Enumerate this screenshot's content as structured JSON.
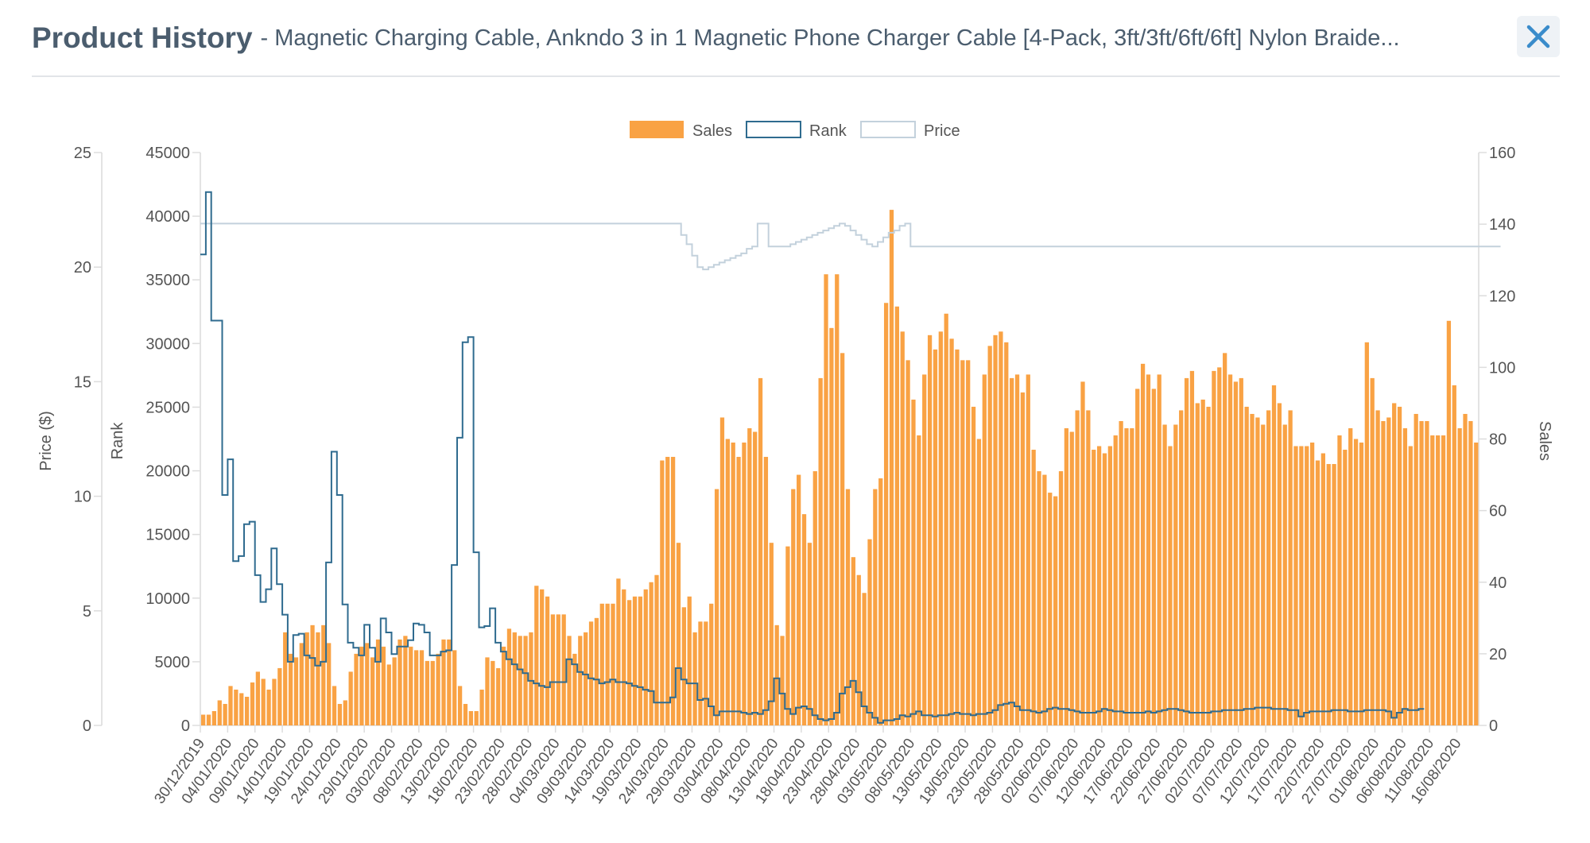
{
  "header": {
    "title": "Product History",
    "separator": "-",
    "subtitle": "Magnetic Charging Cable, Ankndo 3 in 1 Magnetic Phone Charger Cable [4-Pack, 3ft/3ft/6ft/6ft] Nylon Braide...",
    "close_icon": "close-icon"
  },
  "colors": {
    "title": "#4b5d6e",
    "sales": "#f9a244",
    "rank": "#2f6b8f",
    "price": "#c3d1dc",
    "close": "#3a8ccb",
    "axis": "#dddddd",
    "text": "#555555"
  },
  "chart_data": {
    "type": "bar",
    "title": "",
    "legend": [
      "Sales",
      "Rank",
      "Price"
    ],
    "legend_position": "top-center",
    "start_date": "30/12/2019",
    "tick_labels": [
      "30/12/2019",
      "04/01/2020",
      "09/01/2020",
      "14/01/2020",
      "19/01/2020",
      "24/01/2020",
      "29/01/2020",
      "03/02/2020",
      "08/02/2020",
      "13/02/2020",
      "18/02/2020",
      "23/02/2020",
      "28/02/2020",
      "04/03/2020",
      "09/03/2020",
      "14/03/2020",
      "19/03/2020",
      "24/03/2020",
      "29/03/2020",
      "03/04/2020",
      "08/04/2020",
      "13/04/2020",
      "18/04/2020",
      "23/04/2020",
      "28/04/2020",
      "03/05/2020",
      "08/05/2020",
      "13/05/2020",
      "18/05/2020",
      "23/05/2020",
      "28/05/2020",
      "02/06/2020",
      "07/06/2020",
      "12/06/2020",
      "17/06/2020",
      "22/06/2020",
      "27/06/2020",
      "02/07/2020",
      "07/07/2020",
      "12/07/2020",
      "17/07/2020",
      "22/07/2020",
      "27/07/2020",
      "01/08/2020",
      "06/08/2020",
      "11/08/2020",
      "16/08/2020"
    ],
    "tick_interval_days": 5,
    "axes": {
      "price": {
        "label": "Price ($)",
        "range": [
          0,
          25
        ],
        "ticks": [
          0,
          5,
          10,
          15,
          20,
          25
        ]
      },
      "rank": {
        "label": "Rank",
        "range": [
          0,
          45000
        ],
        "ticks": [
          0,
          5000,
          10000,
          15000,
          20000,
          25000,
          30000,
          35000,
          40000,
          45000
        ]
      },
      "sales": {
        "label": "Sales",
        "range": [
          0,
          160
        ],
        "ticks": [
          0,
          20,
          40,
          60,
          80,
          100,
          120,
          140,
          160
        ]
      }
    },
    "series": [
      {
        "name": "Sales",
        "type": "bar",
        "axis": "sales",
        "values": [
          3,
          3,
          4,
          7,
          6,
          11,
          10,
          9,
          8,
          12,
          15,
          13,
          10,
          13,
          16,
          26,
          20,
          19,
          23,
          26,
          28,
          26,
          28,
          23,
          11,
          6,
          7,
          15,
          20,
          22,
          23,
          19,
          24,
          22,
          17,
          19,
          24,
          25,
          22,
          21,
          21,
          18,
          18,
          20,
          24,
          24,
          21,
          11,
          6,
          4,
          4,
          10,
          19,
          18,
          16,
          22,
          27,
          26,
          25,
          25,
          26,
          39,
          38,
          36,
          31,
          31,
          31,
          25,
          20,
          25,
          26,
          29,
          30,
          34,
          34,
          34,
          41,
          38,
          35,
          36,
          36,
          38,
          40,
          42,
          74,
          75,
          75,
          51,
          33,
          36,
          26,
          29,
          29,
          34,
          66,
          86,
          80,
          79,
          75,
          79,
          83,
          82,
          97,
          75,
          51,
          28,
          25,
          50,
          66,
          70,
          59,
          51,
          71,
          97,
          126,
          111,
          126,
          104,
          66,
          47,
          42,
          37,
          52,
          66,
          69,
          118,
          144,
          117,
          110,
          102,
          91,
          81,
          98,
          109,
          105,
          110,
          115,
          108,
          105,
          102,
          102,
          89,
          80,
          98,
          106,
          109,
          110,
          107,
          97,
          98,
          93,
          98,
          77,
          71,
          70,
          65,
          64,
          71,
          83,
          82,
          88,
          96,
          88,
          77,
          78,
          76,
          78,
          81,
          85,
          83,
          83,
          94,
          101,
          98,
          94,
          98,
          84,
          78,
          84,
          88,
          97,
          99,
          90,
          91,
          89,
          99,
          100,
          104,
          98,
          96,
          97,
          89,
          87,
          86,
          84,
          88,
          95,
          90,
          84,
          88,
          78,
          78,
          78,
          79,
          74,
          76,
          73,
          73,
          81,
          77,
          83,
          80,
          79,
          107,
          97,
          88,
          85,
          86,
          90,
          89,
          83,
          78,
          87,
          85,
          85,
          81,
          81,
          81,
          113,
          95,
          83,
          87,
          85,
          79
        ]
      },
      {
        "name": "Rank",
        "type": "step-line",
        "axis": "rank",
        "values": [
          37000,
          41900,
          31800,
          31800,
          18100,
          20900,
          12900,
          13300,
          15800,
          16000,
          11800,
          9700,
          10700,
          13900,
          11100,
          8700,
          5000,
          7100,
          7200,
          5500,
          5300,
          4700,
          5000,
          12800,
          21500,
          18100,
          9500,
          6500,
          6100,
          5500,
          7900,
          6100,
          5000,
          8400,
          7300,
          5600,
          6200,
          6200,
          6700,
          8000,
          7900,
          7300,
          5500,
          5500,
          5800,
          5900,
          12600,
          22600,
          30100,
          30500,
          13600,
          7700,
          7800,
          9200,
          6500,
          5800,
          5200,
          4800,
          4400,
          4100,
          3500,
          3300,
          3100,
          3000,
          3400,
          3400,
          3400,
          5200,
          4800,
          4200,
          4000,
          3700,
          3600,
          3300,
          3400,
          3600,
          3400,
          3400,
          3300,
          3100,
          3000,
          2800,
          2700,
          1800,
          1800,
          1800,
          2200,
          4500,
          3600,
          3300,
          3300,
          2000,
          2100,
          1500,
          800,
          1100,
          1100,
          1100,
          1100,
          1000,
          900,
          1000,
          900,
          1200,
          1900,
          3700,
          2500,
          1300,
          900,
          1400,
          1500,
          1300,
          800,
          500,
          400,
          500,
          1000,
          2500,
          3000,
          3500,
          2600,
          1500,
          1000,
          600,
          200,
          400,
          400,
          500,
          800,
          700,
          900,
          1100,
          800,
          800,
          700,
          800,
          800,
          900,
          1000,
          900,
          900,
          800,
          900,
          900,
          1000,
          1200,
          1600,
          1700,
          1800,
          1500,
          1200,
          1200,
          1100,
          1000,
          1100,
          1300,
          1400,
          1300,
          1300,
          1200,
          1100,
          1000,
          1000,
          1000,
          1100,
          1300,
          1200,
          1100,
          1100,
          1000,
          1000,
          1000,
          1000,
          1100,
          1000,
          1100,
          1200,
          1300,
          1300,
          1200,
          1100,
          1000,
          1000,
          1000,
          1000,
          1100,
          1100,
          1200,
          1200,
          1200,
          1200,
          1300,
          1300,
          1400,
          1400,
          1400,
          1300,
          1300,
          1300,
          1200,
          1200,
          700,
          1000,
          1100,
          1100,
          1100,
          1100,
          1200,
          1200,
          1200,
          1100,
          1100,
          1100,
          1200,
          1200,
          1200,
          1200,
          1100,
          600,
          1000,
          1300,
          1200,
          1200,
          1300
        ]
      },
      {
        "name": "Price",
        "type": "step-line",
        "axis": "price",
        "values": [
          21.9,
          21.9,
          21.9,
          21.9,
          21.9,
          21.9,
          21.9,
          21.9,
          21.9,
          21.9,
          21.9,
          21.9,
          21.9,
          21.9,
          21.9,
          21.9,
          21.9,
          21.9,
          21.9,
          21.9,
          21.9,
          21.9,
          21.9,
          21.9,
          21.9,
          21.9,
          21.9,
          21.9,
          21.9,
          21.9,
          21.9,
          21.9,
          21.9,
          21.9,
          21.9,
          21.9,
          21.9,
          21.9,
          21.9,
          21.9,
          21.9,
          21.9,
          21.9,
          21.9,
          21.9,
          21.9,
          21.9,
          21.9,
          21.9,
          21.9,
          21.9,
          21.9,
          21.9,
          21.9,
          21.9,
          21.9,
          21.9,
          21.9,
          21.9,
          21.9,
          21.9,
          21.9,
          21.9,
          21.9,
          21.9,
          21.9,
          21.9,
          21.9,
          21.9,
          21.9,
          21.9,
          21.9,
          21.9,
          21.9,
          21.9,
          21.9,
          21.9,
          21.9,
          21.9,
          21.9,
          21.9,
          21.9,
          21.9,
          21.9,
          21.9,
          21.9,
          21.9,
          21.9,
          21.4,
          21.0,
          20.5,
          20.0,
          19.9,
          20.0,
          20.1,
          20.2,
          20.3,
          20.4,
          20.5,
          20.6,
          20.8,
          20.9,
          21.9,
          21.9,
          20.9,
          20.9,
          20.9,
          20.9,
          21.0,
          21.1,
          21.2,
          21.3,
          21.4,
          21.5,
          21.6,
          21.7,
          21.8,
          21.9,
          21.8,
          21.6,
          21.4,
          21.2,
          21.0,
          20.9,
          21.1,
          21.3,
          21.5,
          21.6,
          21.8,
          21.9,
          20.9,
          20.9,
          20.9,
          20.9,
          20.9,
          20.9,
          20.9,
          20.9,
          20.9,
          20.9,
          20.9,
          20.9,
          20.9,
          20.9,
          20.9,
          20.9,
          20.9,
          20.9,
          20.9,
          20.9,
          20.9,
          20.9,
          20.9,
          20.9,
          20.9,
          20.9,
          20.9,
          20.9,
          20.9,
          20.9,
          20.9,
          20.9,
          20.9,
          20.9,
          20.9,
          20.9,
          20.9,
          20.9,
          20.9,
          20.9,
          20.9,
          20.9,
          20.9,
          20.9,
          20.9,
          20.9,
          20.9,
          20.9,
          20.9,
          20.9,
          20.9,
          20.9,
          20.9,
          20.9,
          20.9,
          20.9,
          20.9,
          20.9,
          20.9,
          20.9,
          20.9,
          20.9,
          20.9,
          20.9,
          20.9,
          20.9,
          20.9,
          20.9,
          20.9,
          20.9,
          20.9,
          20.9,
          20.9,
          20.9,
          20.9,
          20.9,
          20.9,
          20.9,
          20.9,
          20.9,
          20.9,
          20.9,
          20.9,
          20.9,
          20.9,
          20.9,
          20.9,
          20.9,
          20.9,
          20.9,
          20.9,
          20.9,
          20.9,
          20.9,
          20.9,
          20.9,
          20.9,
          20.9,
          20.9,
          20.9,
          20.9,
          20.9,
          20.9,
          20.9,
          20.9,
          20.9,
          20.9,
          20.9
        ]
      }
    ]
  }
}
